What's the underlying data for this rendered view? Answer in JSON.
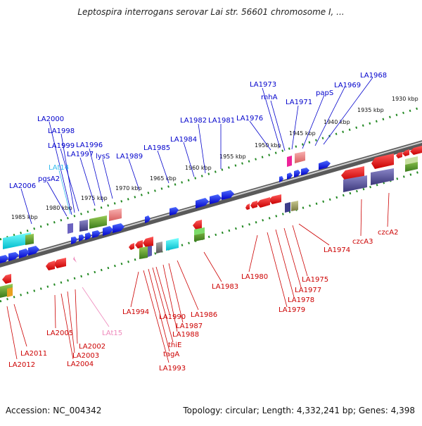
{
  "title": "Leptospira interrogans serovar Lai str. 56601 chromosome I, ...",
  "footer": {
    "accession": "Accession: NC_004342",
    "summary": "Topology: circular; Length: 4,332,241 bp; Genes: 4,398"
  },
  "colors": {
    "forward_label": "#0000cc",
    "reverse_label": "#cc0000",
    "trna_forward_label": "#33bbee",
    "trna_reverse_label": "#ee88bb",
    "axis": "#777777",
    "ticks": "#228822"
  },
  "kbp_labels": [
    "1930 kbp",
    "1935 kbp",
    "1940 kbp",
    "1945 kbp",
    "1950 kbp",
    "1955 kbp",
    "1960 kbp",
    "1965 kbp",
    "1970 kbp",
    "1975 kbp",
    "1980 kbp",
    "1985 kbp"
  ],
  "forward_labels": [
    "LA1968",
    "LA1969",
    "papS",
    "LA1971",
    "rnhA",
    "LA1973",
    "LA1976",
    "LA1981",
    "LA1982",
    "LA1984",
    "LA1985",
    "LA1989",
    "lysS",
    "LA1996",
    "LA1997",
    "LA1999",
    "LA1998",
    "LA2000",
    "LAt14",
    "pgsA2",
    "LA2006"
  ],
  "reverse_labels": [
    "czcA2",
    "czcA3",
    "LA1974",
    "LA1975",
    "LA1977",
    "LA1978",
    "LA1979",
    "LA1980",
    "LA1983",
    "LA1986",
    "LA1987",
    "LA1988",
    "LA1990",
    "thiE",
    "tagA",
    "LA1993",
    "LA1994",
    "LAt15",
    "LA2002",
    "LA2003",
    "LA2004",
    "LA2005",
    "LA2011",
    "LA2012"
  ]
}
